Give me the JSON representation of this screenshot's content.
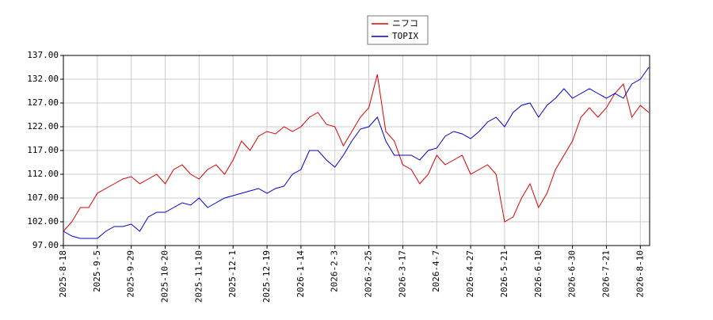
{
  "chart_data": {
    "type": "line",
    "x": [
      "2025-8-18",
      "2025-8-22",
      "2025-8-27",
      "2025-9-1",
      "2025-9-5",
      "2025-9-11",
      "2025-9-17",
      "2025-9-24",
      "2025-9-29",
      "2025-10-3",
      "2025-10-9",
      "2025-10-15",
      "2025-10-20",
      "2025-10-24",
      "2025-10-30",
      "2025-11-5",
      "2025-11-10",
      "2025-11-14",
      "2025-11-19",
      "2025-11-26",
      "2025-12-1",
      "2025-12-5",
      "2025-12-10",
      "2025-12-15",
      "2025-12-19",
      "2025-12-25",
      "2026-1-5",
      "2026-1-8",
      "2026-1-14",
      "2026-1-19",
      "2026-1-23",
      "2026-1-28",
      "2026-2-3",
      "2026-2-9",
      "2026-2-13",
      "2026-2-19",
      "2026-2-25",
      "2026-3-2",
      "2026-3-6",
      "2026-3-11",
      "2026-3-17",
      "2026-3-23",
      "2026-3-27",
      "2026-4-1",
      "2026-4-7",
      "2026-4-13",
      "2026-4-16",
      "2026-4-22",
      "2026-4-27",
      "2026-5-4",
      "2026-5-11",
      "2026-5-15",
      "2026-5-21",
      "2026-5-26",
      "2026-5-29",
      "2026-6-4",
      "2026-6-10",
      "2026-6-15",
      "2026-6-19",
      "2026-6-24",
      "2026-6-30",
      "2026-7-6",
      "2026-7-9",
      "2026-7-15",
      "2026-7-21",
      "2026-7-27",
      "2026-7-30",
      "2026-8-4",
      "2026-8-10",
      "2026-8-14"
    ],
    "series": [
      {
        "name": "ニフコ",
        "color": "#dd0000",
        "values": [
          100,
          102,
          105,
          105,
          108,
          109,
          110,
          111,
          111.5,
          110,
          111,
          112,
          110,
          113,
          114,
          112,
          111,
          113,
          114,
          112,
          115,
          119,
          117,
          120,
          121,
          120.5,
          122,
          121,
          122,
          124,
          125,
          122.5,
          122,
          118,
          121,
          124,
          126,
          133,
          121,
          119,
          114,
          113,
          110,
          112,
          116,
          114,
          115,
          116,
          112,
          113,
          114,
          112,
          102,
          103,
          107,
          110,
          105,
          108,
          113,
          116,
          119,
          124,
          126,
          124,
          126,
          129,
          131,
          124,
          126.5,
          125
        ]
      },
      {
        "name": "TOPIX",
        "color": "#0000cc",
        "values": [
          100,
          99,
          98.5,
          98.5,
          98.5,
          100,
          101,
          101,
          101.5,
          100,
          103,
          104,
          104,
          105,
          106,
          105.5,
          107,
          105,
          106,
          107,
          107.5,
          108,
          108.5,
          109,
          108,
          109,
          109.5,
          112,
          113,
          117,
          117,
          115,
          113.5,
          116,
          119,
          121.5,
          122,
          124,
          119,
          116,
          116,
          116,
          115,
          117,
          117.5,
          120,
          121,
          120.5,
          119.5,
          121,
          123,
          124,
          122,
          125,
          126.5,
          127,
          124,
          126.5,
          128,
          130,
          128,
          129,
          130,
          129,
          128,
          129,
          128,
          131,
          132,
          134.5
        ]
      }
    ],
    "ylim": [
      97,
      137
    ],
    "yticks": [
      {
        "value": 97,
        "label": "97.00"
      },
      {
        "value": 102,
        "label": "102.00"
      },
      {
        "value": 107,
        "label": "107.00"
      },
      {
        "value": 112,
        "label": "112.00"
      },
      {
        "value": 117,
        "label": "117.00"
      },
      {
        "value": 122,
        "label": "122.00"
      },
      {
        "value": 127,
        "label": "127.00"
      },
      {
        "value": 132,
        "label": "132.00"
      },
      {
        "value": 137,
        "label": "137.00"
      }
    ],
    "xticks": [
      "2025-8-18",
      "2025-9-5",
      "2025-9-29",
      "2025-10-20",
      "2025-11-10",
      "2025-12-1",
      "2025-12-19",
      "2026-1-14",
      "2026-2-3",
      "2026-2-25",
      "2026-3-17",
      "2026-4-7",
      "2026-4-27",
      "2026-5-21",
      "2026-6-10",
      "2026-6-30",
      "2026-7-21",
      "2026-8-10"
    ],
    "grid": true,
    "legend": "top"
  }
}
